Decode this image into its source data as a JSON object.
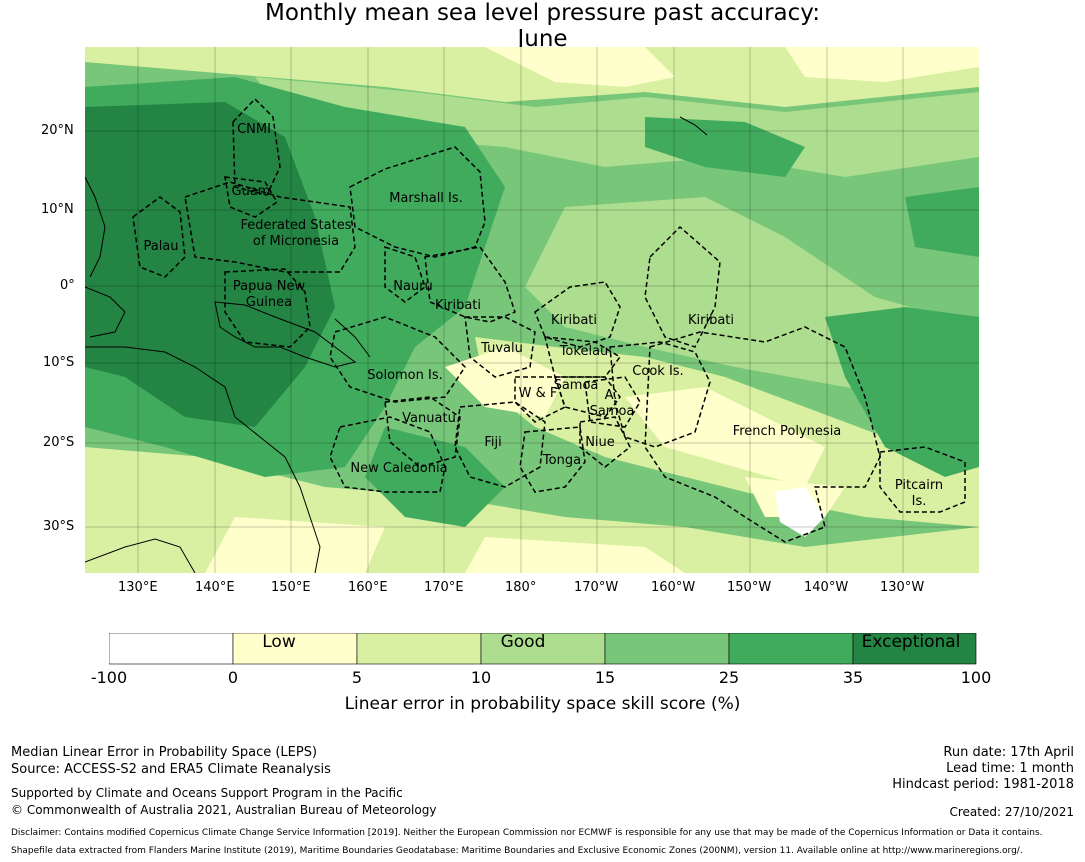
{
  "title": {
    "line1": "Monthly mean sea level pressure past accuracy:",
    "line2": "June"
  },
  "map": {
    "lon_ticks": [
      "130°E",
      "140°E",
      "150°E",
      "160°E",
      "170°E",
      "180°",
      "170°W",
      "160°W",
      "150°W",
      "140°W",
      "130°W"
    ],
    "lat_ticks": [
      "20°N",
      "10°N",
      "0°",
      "10°S",
      "20°S",
      "30°S"
    ],
    "regions": [
      {
        "label": "CNMI"
      },
      {
        "label": "Guam"
      },
      {
        "label": "Marshall Is."
      },
      {
        "label": "Palau"
      },
      {
        "label": "Federated States"
      },
      {
        "label": "of Micronesia"
      },
      {
        "label": "Papua New"
      },
      {
        "label": "Guinea"
      },
      {
        "label": "Nauru"
      },
      {
        "label": "Kiribati"
      },
      {
        "label": "Kiribati"
      },
      {
        "label": "Kiribati"
      },
      {
        "label": "Tuvalu"
      },
      {
        "label": "Tokelau"
      },
      {
        "label": "Solomon Is."
      },
      {
        "label": "Samoa"
      },
      {
        "label": "W & F"
      },
      {
        "label": "A."
      },
      {
        "label": "Samoa"
      },
      {
        "label": "Cook Is."
      },
      {
        "label": "Vanuatu"
      },
      {
        "label": "Fiji"
      },
      {
        "label": "Niue"
      },
      {
        "label": "Tonga"
      },
      {
        "label": "French Polynesia"
      },
      {
        "label": "New Caledonia"
      },
      {
        "label": "Pitcairn"
      },
      {
        "label": "Is."
      }
    ]
  },
  "colorbar": {
    "boundaries": [
      "-100",
      "0",
      "5",
      "10",
      "15",
      "25",
      "35",
      "100"
    ],
    "colors": [
      "#ffffff",
      "#ffffcc",
      "#d9f0a3",
      "#addd8e",
      "#78c679",
      "#41ab5d",
      "#238443"
    ],
    "categories": [
      "Low",
      "Good",
      "Exceptional"
    ],
    "title": "Linear error in probability space skill score (%)"
  },
  "footer": {
    "left1": "Median Linear Error in Probability Space (LEPS)",
    "left2": "Source: ACCESS-S2 and ERA5 Climate Reanalysis",
    "support": "Supported by Climate and Oceans Support Program in the Pacific",
    "copyright": "© Commonwealth of Australia 2021, Australian Bureau of Meteorology",
    "run_date": "Run date: 17th April",
    "lead_time": "Lead time: 1 month",
    "hindcast": "Hindcast period: 1981-2018",
    "created": "Created: 27/10/2021",
    "disclaimer": "Disclaimer: Contains modified Copernicus Climate Change Service Information [2019]. Neither the European Commission nor ECMWF is responsible for any use that may be made of the Copernicus Information or Data it contains.",
    "shapefile": "Shapefile data extracted from Flanders Marine Institute (2019), Maritime Boundaries Geodatabase: Maritime Boundaries and Exclusive Economic Zones (200NM), version 11. Available online at http://www.marineregions.org/."
  }
}
